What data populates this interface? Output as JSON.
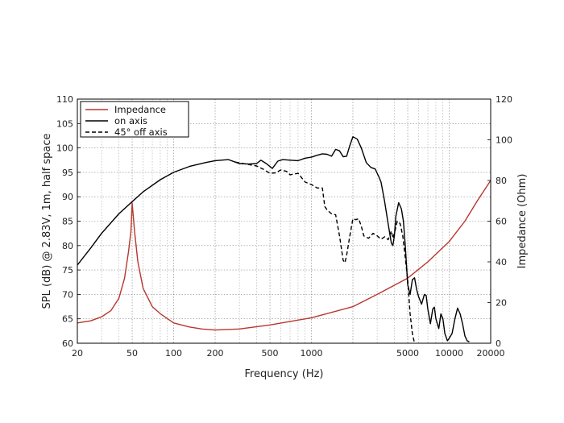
{
  "chart_data": {
    "type": "line",
    "title": "",
    "xlabel": "Frequency (Hz)",
    "ylabel": "SPL (dB) @ 2.83V, 1m, half space",
    "y2label": "Impedance (Ohm)",
    "xscale": "log",
    "xlim": [
      20,
      20000
    ],
    "ylim": [
      60,
      110
    ],
    "y2lim": [
      0,
      120
    ],
    "xticks": [
      20,
      50,
      100,
      200,
      500,
      1000,
      5000,
      10000,
      20000
    ],
    "xtick_labels": [
      "20",
      "50",
      "100",
      "200",
      "500",
      "1000",
      "5000",
      "10000",
      "20000"
    ],
    "yticks": [
      60,
      65,
      70,
      75,
      80,
      85,
      90,
      95,
      100,
      105,
      110
    ],
    "y2ticks": [
      0,
      20,
      40,
      60,
      80,
      100,
      120
    ],
    "grid": true,
    "legend_position": "top-left",
    "series": [
      {
        "name": "Impedance",
        "axis": "right",
        "color": "#b8362e",
        "style": "solid",
        "points": [
          [
            20,
            10
          ],
          [
            25,
            11
          ],
          [
            30,
            13
          ],
          [
            35,
            16
          ],
          [
            40,
            22
          ],
          [
            44,
            32
          ],
          [
            47,
            45
          ],
          [
            49,
            55
          ],
          [
            50,
            69
          ],
          [
            52,
            55
          ],
          [
            55,
            40
          ],
          [
            60,
            27
          ],
          [
            70,
            18
          ],
          [
            80,
            14.5
          ],
          [
            100,
            10
          ],
          [
            130,
            8
          ],
          [
            160,
            7
          ],
          [
            200,
            6.5
          ],
          [
            300,
            7
          ],
          [
            500,
            9
          ],
          [
            1000,
            12.5
          ],
          [
            2000,
            18
          ],
          [
            3000,
            24
          ],
          [
            5000,
            32
          ],
          [
            7000,
            40
          ],
          [
            10000,
            50
          ],
          [
            13000,
            60
          ],
          [
            16000,
            70
          ],
          [
            20000,
            80
          ]
        ]
      },
      {
        "name": "on axis",
        "axis": "left",
        "color": "#000000",
        "style": "solid",
        "points": [
          [
            20,
            76
          ],
          [
            25,
            79.5
          ],
          [
            30,
            82.5
          ],
          [
            40,
            86.5
          ],
          [
            50,
            89
          ],
          [
            60,
            91
          ],
          [
            80,
            93.5
          ],
          [
            100,
            95
          ],
          [
            130,
            96.2
          ],
          [
            170,
            97
          ],
          [
            200,
            97.4
          ],
          [
            250,
            97.6
          ],
          [
            280,
            97.1
          ],
          [
            300,
            96.8
          ],
          [
            350,
            96.7
          ],
          [
            400,
            96.8
          ],
          [
            430,
            97.5
          ],
          [
            470,
            96.8
          ],
          [
            520,
            95.8
          ],
          [
            570,
            97.3
          ],
          [
            620,
            97.6
          ],
          [
            700,
            97.5
          ],
          [
            800,
            97.4
          ],
          [
            900,
            97.9
          ],
          [
            1000,
            98.1
          ],
          [
            1100,
            98.5
          ],
          [
            1200,
            98.8
          ],
          [
            1300,
            98.7
          ],
          [
            1400,
            98.3
          ],
          [
            1500,
            99.7
          ],
          [
            1600,
            99.4
          ],
          [
            1700,
            98.2
          ],
          [
            1800,
            98.3
          ],
          [
            1900,
            100.5
          ],
          [
            2000,
            102.3
          ],
          [
            2150,
            101.8
          ],
          [
            2300,
            100
          ],
          [
            2500,
            97
          ],
          [
            2700,
            96
          ],
          [
            2900,
            95.7
          ],
          [
            3100,
            94
          ],
          [
            3200,
            93
          ],
          [
            3400,
            89
          ],
          [
            3600,
            84.5
          ],
          [
            3800,
            80.5
          ],
          [
            3900,
            80
          ],
          [
            4000,
            82
          ],
          [
            4100,
            86
          ],
          [
            4300,
            88.8
          ],
          [
            4500,
            87.5
          ],
          [
            4650,
            85
          ],
          [
            4800,
            80
          ],
          [
            5000,
            72
          ],
          [
            5200,
            70
          ],
          [
            5400,
            73
          ],
          [
            5600,
            73.4
          ],
          [
            5800,
            71
          ],
          [
            6000,
            69.5
          ],
          [
            6300,
            68
          ],
          [
            6600,
            70
          ],
          [
            6800,
            69.8
          ],
          [
            7000,
            67
          ],
          [
            7300,
            64
          ],
          [
            7600,
            67
          ],
          [
            7800,
            67.4
          ],
          [
            8000,
            65
          ],
          [
            8400,
            63
          ],
          [
            8700,
            66
          ],
          [
            9000,
            65
          ],
          [
            9300,
            62
          ],
          [
            9700,
            60.5
          ],
          [
            10000,
            61
          ],
          [
            10500,
            62
          ],
          [
            11000,
            65
          ],
          [
            11500,
            67.2
          ],
          [
            12000,
            66
          ],
          [
            12500,
            64
          ],
          [
            13000,
            61.5
          ],
          [
            13500,
            60.5
          ],
          [
            14000,
            60.3
          ]
        ]
      },
      {
        "name": "45° off axis",
        "axis": "left",
        "color": "#000000",
        "style": "dashed",
        "points": [
          [
            280,
            97.1
          ],
          [
            350,
            96.6
          ],
          [
            400,
            96.3
          ],
          [
            450,
            95.6
          ],
          [
            500,
            94.8
          ],
          [
            550,
            94.9
          ],
          [
            600,
            95.5
          ],
          [
            660,
            95.2
          ],
          [
            700,
            94.5
          ],
          [
            800,
            94.8
          ],
          [
            900,
            93
          ],
          [
            1000,
            92.5
          ],
          [
            1100,
            91.8
          ],
          [
            1200,
            91.8
          ],
          [
            1250,
            88
          ],
          [
            1300,
            87.3
          ],
          [
            1400,
            86.5
          ],
          [
            1500,
            86.3
          ],
          [
            1600,
            82
          ],
          [
            1700,
            77
          ],
          [
            1750,
            76.5
          ],
          [
            1800,
            78
          ],
          [
            1900,
            82
          ],
          [
            2000,
            85.5
          ],
          [
            2100,
            85.3
          ],
          [
            2200,
            85.5
          ],
          [
            2300,
            84
          ],
          [
            2400,
            82
          ],
          [
            2600,
            81.5
          ],
          [
            2800,
            82.5
          ],
          [
            3000,
            82
          ],
          [
            3200,
            81.3
          ],
          [
            3400,
            81.8
          ],
          [
            3600,
            81.2
          ],
          [
            3800,
            83
          ],
          [
            3900,
            81.5
          ],
          [
            4000,
            82.5
          ],
          [
            4200,
            85
          ],
          [
            4400,
            84.5
          ],
          [
            4600,
            82
          ],
          [
            4800,
            77.5
          ],
          [
            5000,
            73
          ],
          [
            5200,
            66
          ],
          [
            5400,
            62
          ],
          [
            5600,
            60
          ]
        ]
      }
    ]
  }
}
